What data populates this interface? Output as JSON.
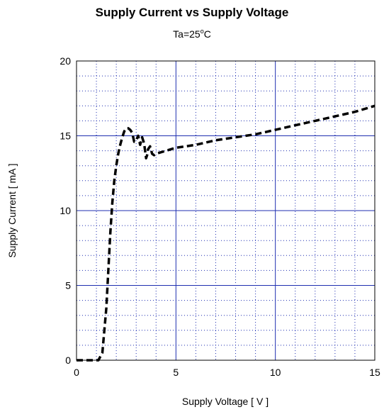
{
  "chart_data": {
    "type": "line",
    "title": "Supply Current vs Supply Voltage",
    "subtitle": {
      "prefix": "Ta=25",
      "superscript": "o",
      "suffix": "C"
    },
    "xlabel": "Supply Voltage  [ V ]",
    "ylabel": "Supply Current  [ mA ]",
    "xlim": [
      0,
      15
    ],
    "ylim": [
      0,
      20
    ],
    "x_ticks": [
      0,
      5,
      10,
      15
    ],
    "y_ticks": [
      0,
      5,
      10,
      15,
      20
    ],
    "grid": true,
    "legend": "none",
    "colors": {
      "major_grid": "#1f2fb0",
      "minor_grid": "#1f2fb0",
      "series": "#000000",
      "frame": "#000000"
    },
    "series": [
      {
        "style": "dashed",
        "x": [
          0,
          1.1,
          1.3,
          1.5,
          1.6,
          1.7,
          1.8,
          1.9,
          2.0,
          2.1,
          2.2,
          2.3,
          2.4,
          2.5,
          2.6,
          2.7,
          2.8,
          2.9,
          3.0,
          3.1,
          3.2,
          3.3,
          3.4,
          3.5,
          3.55,
          3.6,
          3.7,
          3.8,
          3.9,
          4.0,
          4.5,
          5.0,
          6.0,
          7.0,
          8.0,
          9.0,
          10.0,
          11.0,
          12.0,
          13.0,
          14.0,
          15.0
        ],
        "y": [
          0,
          0,
          0.5,
          3.5,
          6.0,
          8.5,
          10.5,
          12.0,
          13.0,
          13.8,
          14.4,
          14.9,
          15.3,
          15.5,
          15.5,
          15.4,
          15.2,
          14.6,
          14.7,
          15.0,
          14.4,
          14.9,
          14.5,
          13.5,
          13.7,
          14.1,
          14.3,
          13.8,
          13.7,
          13.8,
          14.0,
          14.2,
          14.4,
          14.7,
          14.9,
          15.1,
          15.4,
          15.7,
          16.0,
          16.3,
          16.6,
          17.0
        ]
      }
    ]
  }
}
